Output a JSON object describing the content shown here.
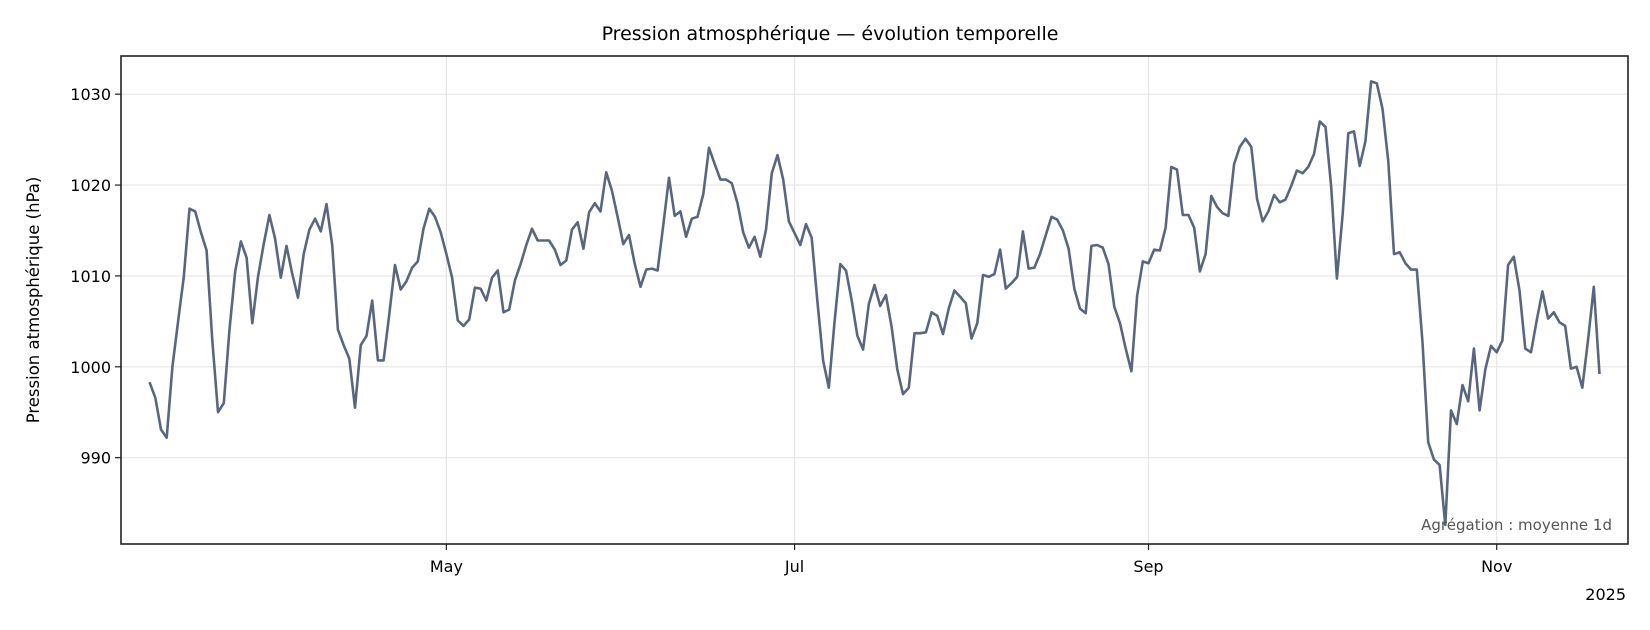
{
  "chart_data": {
    "type": "line",
    "title": "Pression atmosphérique — évolution temporelle",
    "xlabel": "",
    "ylabel": "Pression atmosphérique (hPa)",
    "x_offset_label": "2025",
    "annotation": "Agrégation : moyenne 1d",
    "xlim": [
      "2025-03-05",
      "2025-11-24"
    ],
    "ylim": [
      980.5,
      1034.2
    ],
    "grid": true,
    "line_color": "#5a6680",
    "x_ticks": [
      {
        "date": "2025-05-01",
        "label": "May"
      },
      {
        "date": "2025-07-01",
        "label": "Jul"
      },
      {
        "date": "2025-09-01",
        "label": "Sep"
      },
      {
        "date": "2025-11-01",
        "label": "Nov"
      }
    ],
    "y_ticks": [
      990,
      1000,
      1010,
      1020,
      1030
    ],
    "x": [
      "2025-03-10",
      "2025-03-11",
      "2025-03-12",
      "2025-03-13",
      "2025-03-14",
      "2025-03-15",
      "2025-03-16",
      "2025-03-17",
      "2025-03-18",
      "2025-03-19",
      "2025-03-20",
      "2025-03-21",
      "2025-03-22",
      "2025-03-23",
      "2025-03-24",
      "2025-03-25",
      "2025-03-26",
      "2025-03-27",
      "2025-03-28",
      "2025-03-29",
      "2025-03-30",
      "2025-03-31",
      "2025-04-01",
      "2025-04-02",
      "2025-04-03",
      "2025-04-04",
      "2025-04-05",
      "2025-04-06",
      "2025-04-07",
      "2025-04-08",
      "2025-04-09",
      "2025-04-10",
      "2025-04-11",
      "2025-04-12",
      "2025-04-13",
      "2025-04-14",
      "2025-04-15",
      "2025-04-16",
      "2025-04-17",
      "2025-04-18",
      "2025-04-19",
      "2025-04-20",
      "2025-04-21",
      "2025-04-22",
      "2025-04-23",
      "2025-04-24",
      "2025-04-25",
      "2025-04-26",
      "2025-04-27",
      "2025-04-28",
      "2025-04-29",
      "2025-04-30",
      "2025-05-01",
      "2025-05-02",
      "2025-05-03",
      "2025-05-04",
      "2025-05-05",
      "2025-05-06",
      "2025-05-07",
      "2025-05-08",
      "2025-05-09",
      "2025-05-10",
      "2025-05-11",
      "2025-05-12",
      "2025-05-13",
      "2025-05-14",
      "2025-05-15",
      "2025-05-16",
      "2025-05-17",
      "2025-05-18",
      "2025-05-19",
      "2025-05-20",
      "2025-05-21",
      "2025-05-22",
      "2025-05-23",
      "2025-05-24",
      "2025-05-25",
      "2025-05-26",
      "2025-05-27",
      "2025-05-28",
      "2025-05-29",
      "2025-05-30",
      "2025-05-31",
      "2025-06-01",
      "2025-06-02",
      "2025-06-03",
      "2025-06-04",
      "2025-06-05",
      "2025-06-06",
      "2025-06-07",
      "2025-06-08",
      "2025-06-09",
      "2025-06-10",
      "2025-06-11",
      "2025-06-12",
      "2025-06-13",
      "2025-06-14",
      "2025-06-15",
      "2025-06-16",
      "2025-06-17",
      "2025-06-18",
      "2025-06-19",
      "2025-06-20",
      "2025-06-21",
      "2025-06-22",
      "2025-06-23",
      "2025-06-24",
      "2025-06-25",
      "2025-06-26",
      "2025-06-27",
      "2025-06-28",
      "2025-06-29",
      "2025-06-30",
      "2025-07-01",
      "2025-07-02",
      "2025-07-03",
      "2025-07-04",
      "2025-07-05",
      "2025-07-06",
      "2025-07-07",
      "2025-07-08",
      "2025-07-09",
      "2025-07-10",
      "2025-07-11",
      "2025-07-12",
      "2025-07-13",
      "2025-07-14",
      "2025-07-15",
      "2025-07-16",
      "2025-07-17",
      "2025-07-18",
      "2025-07-19",
      "2025-07-20",
      "2025-07-21",
      "2025-07-22",
      "2025-07-23",
      "2025-07-24",
      "2025-07-25",
      "2025-07-26",
      "2025-07-27",
      "2025-07-28",
      "2025-07-29",
      "2025-07-30",
      "2025-07-31",
      "2025-08-01",
      "2025-08-02",
      "2025-08-03",
      "2025-08-04",
      "2025-08-05",
      "2025-08-06",
      "2025-08-07",
      "2025-08-08",
      "2025-08-09",
      "2025-08-10",
      "2025-08-11",
      "2025-08-12",
      "2025-08-13",
      "2025-08-14",
      "2025-08-15",
      "2025-08-16",
      "2025-08-17",
      "2025-08-18",
      "2025-08-19",
      "2025-08-20",
      "2025-08-21",
      "2025-08-22",
      "2025-08-23",
      "2025-08-24",
      "2025-08-25",
      "2025-08-26",
      "2025-08-27",
      "2025-08-28",
      "2025-08-29",
      "2025-08-30",
      "2025-08-31",
      "2025-09-01",
      "2025-09-02",
      "2025-09-03",
      "2025-09-04",
      "2025-09-05",
      "2025-09-06",
      "2025-09-07",
      "2025-09-08",
      "2025-09-09",
      "2025-09-10",
      "2025-09-11",
      "2025-09-12",
      "2025-09-13",
      "2025-09-14",
      "2025-09-15",
      "2025-09-16",
      "2025-09-17",
      "2025-09-18",
      "2025-09-19",
      "2025-09-20",
      "2025-09-21",
      "2025-09-22",
      "2025-09-23",
      "2025-09-24",
      "2025-09-25",
      "2025-09-26",
      "2025-09-27",
      "2025-09-28",
      "2025-09-29",
      "2025-09-30",
      "2025-10-01",
      "2025-10-02",
      "2025-10-03",
      "2025-10-04",
      "2025-10-05",
      "2025-10-06",
      "2025-10-07",
      "2025-10-08",
      "2025-10-09",
      "2025-10-10",
      "2025-10-11",
      "2025-10-12",
      "2025-10-13",
      "2025-10-14",
      "2025-10-15",
      "2025-10-16",
      "2025-10-17",
      "2025-10-18",
      "2025-10-19",
      "2025-10-20",
      "2025-10-21",
      "2025-10-22",
      "2025-10-23",
      "2025-10-24",
      "2025-10-25",
      "2025-10-26",
      "2025-10-27",
      "2025-10-28",
      "2025-10-29",
      "2025-10-30",
      "2025-10-31",
      "2025-11-01",
      "2025-11-02",
      "2025-11-03",
      "2025-11-04",
      "2025-11-05",
      "2025-11-06",
      "2025-11-07",
      "2025-11-08",
      "2025-11-09",
      "2025-11-10",
      "2025-11-11",
      "2025-11-12",
      "2025-11-13",
      "2025-11-14",
      "2025-11-15",
      "2025-11-16",
      "2025-11-17",
      "2025-11-18",
      "2025-11-19"
    ],
    "y": [
      998.3,
      996.6,
      993.1,
      992.2,
      1000.0,
      1005.0,
      1009.9,
      1017.4,
      1017.1,
      1014.8,
      1012.8,
      1002.9,
      995.0,
      996.0,
      1004.1,
      1010.5,
      1013.8,
      1012.0,
      1004.8,
      1009.9,
      1013.5,
      1016.7,
      1014.1,
      1009.8,
      1013.3,
      1010.2,
      1007.6,
      1012.4,
      1015.1,
      1016.3,
      1014.9,
      1017.9,
      1013.4,
      1004.1,
      1002.4,
      1000.9,
      995.5,
      1002.4,
      1003.4,
      1007.3,
      1000.7,
      1000.7,
      1005.8,
      1011.2,
      1008.5,
      1009.4,
      1010.9,
      1011.6,
      1015.2,
      1017.4,
      1016.5,
      1014.8,
      1012.4,
      1009.8,
      1005.1,
      1004.5,
      1005.2,
      1008.7,
      1008.6,
      1007.3,
      1009.8,
      1010.6,
      1006.0,
      1006.3,
      1009.5,
      1011.3,
      1013.4,
      1015.2,
      1013.9,
      1013.9,
      1013.9,
      1012.9,
      1011.2,
      1011.7,
      1015.1,
      1015.9,
      1013.0,
      1017.0,
      1018.0,
      1017.1,
      1021.4,
      1019.4,
      1016.5,
      1013.5,
      1014.5,
      1011.3,
      1008.8,
      1010.7,
      1010.8,
      1010.6,
      1015.6,
      1020.8,
      1016.6,
      1017.1,
      1014.3,
      1016.3,
      1016.5,
      1019.0,
      1024.1,
      1022.3,
      1020.6,
      1020.6,
      1020.2,
      1018.0,
      1014.8,
      1013.1,
      1014.3,
      1012.1,
      1015.1,
      1021.3,
      1023.3,
      1020.6,
      1016.0,
      1014.7,
      1013.4,
      1015.7,
      1014.2,
      1007.2,
      1000.7,
      997.7,
      1004.9,
      1011.3,
      1010.6,
      1007.3,
      1003.4,
      1001.9,
      1006.9,
      1009.0,
      1006.7,
      1007.9,
      1004.4,
      999.7,
      997.0,
      997.7,
      1003.7,
      1003.7,
      1003.8,
      1006.0,
      1005.6,
      1003.6,
      1006.4,
      1008.4,
      1007.7,
      1007.0,
      1003.1,
      1004.8,
      1010.1,
      1009.9,
      1010.2,
      1012.9,
      1008.6,
      1009.2,
      1009.9,
      1014.9,
      1010.8,
      1010.9,
      1012.4,
      1014.5,
      1016.5,
      1016.2,
      1015.0,
      1013.0,
      1008.6,
      1006.4,
      1005.9,
      1013.3,
      1013.4,
      1013.1,
      1011.3,
      1006.6,
      1004.8,
      1002.0,
      999.5,
      1007.8,
      1011.6,
      1011.4,
      1012.9,
      1012.8,
      1015.3,
      1022.0,
      1021.7,
      1016.7,
      1016.7,
      1015.3,
      1010.5,
      1012.4,
      1018.8,
      1017.6,
      1016.9,
      1016.6,
      1022.3,
      1024.2,
      1025.1,
      1024.2,
      1018.5,
      1016.0,
      1017.1,
      1018.9,
      1018.1,
      1018.4,
      1019.9,
      1021.6,
      1021.3,
      1022.0,
      1023.4,
      1027.0,
      1026.4,
      1019.8,
      1009.7,
      1016.7,
      1025.7,
      1025.9,
      1022.1,
      1024.8,
      1031.4,
      1031.2,
      1028.4,
      1022.6,
      1012.4,
      1012.6,
      1011.4,
      1010.7,
      1010.7,
      1002.7,
      991.7,
      989.8,
      989.2,
      982.6,
      995.2,
      993.7,
      998.0,
      996.2,
      1002.0,
      995.2,
      999.7,
      1002.3,
      1001.6,
      1002.9,
      1011.2,
      1012.1,
      1008.4,
      1002.0,
      1001.6,
      1005.1,
      1008.3,
      1005.3,
      1006.0,
      1004.9,
      1004.5,
      999.8,
      1000.0,
      997.7,
      1002.9,
      1008.8,
      999.2
    ]
  }
}
